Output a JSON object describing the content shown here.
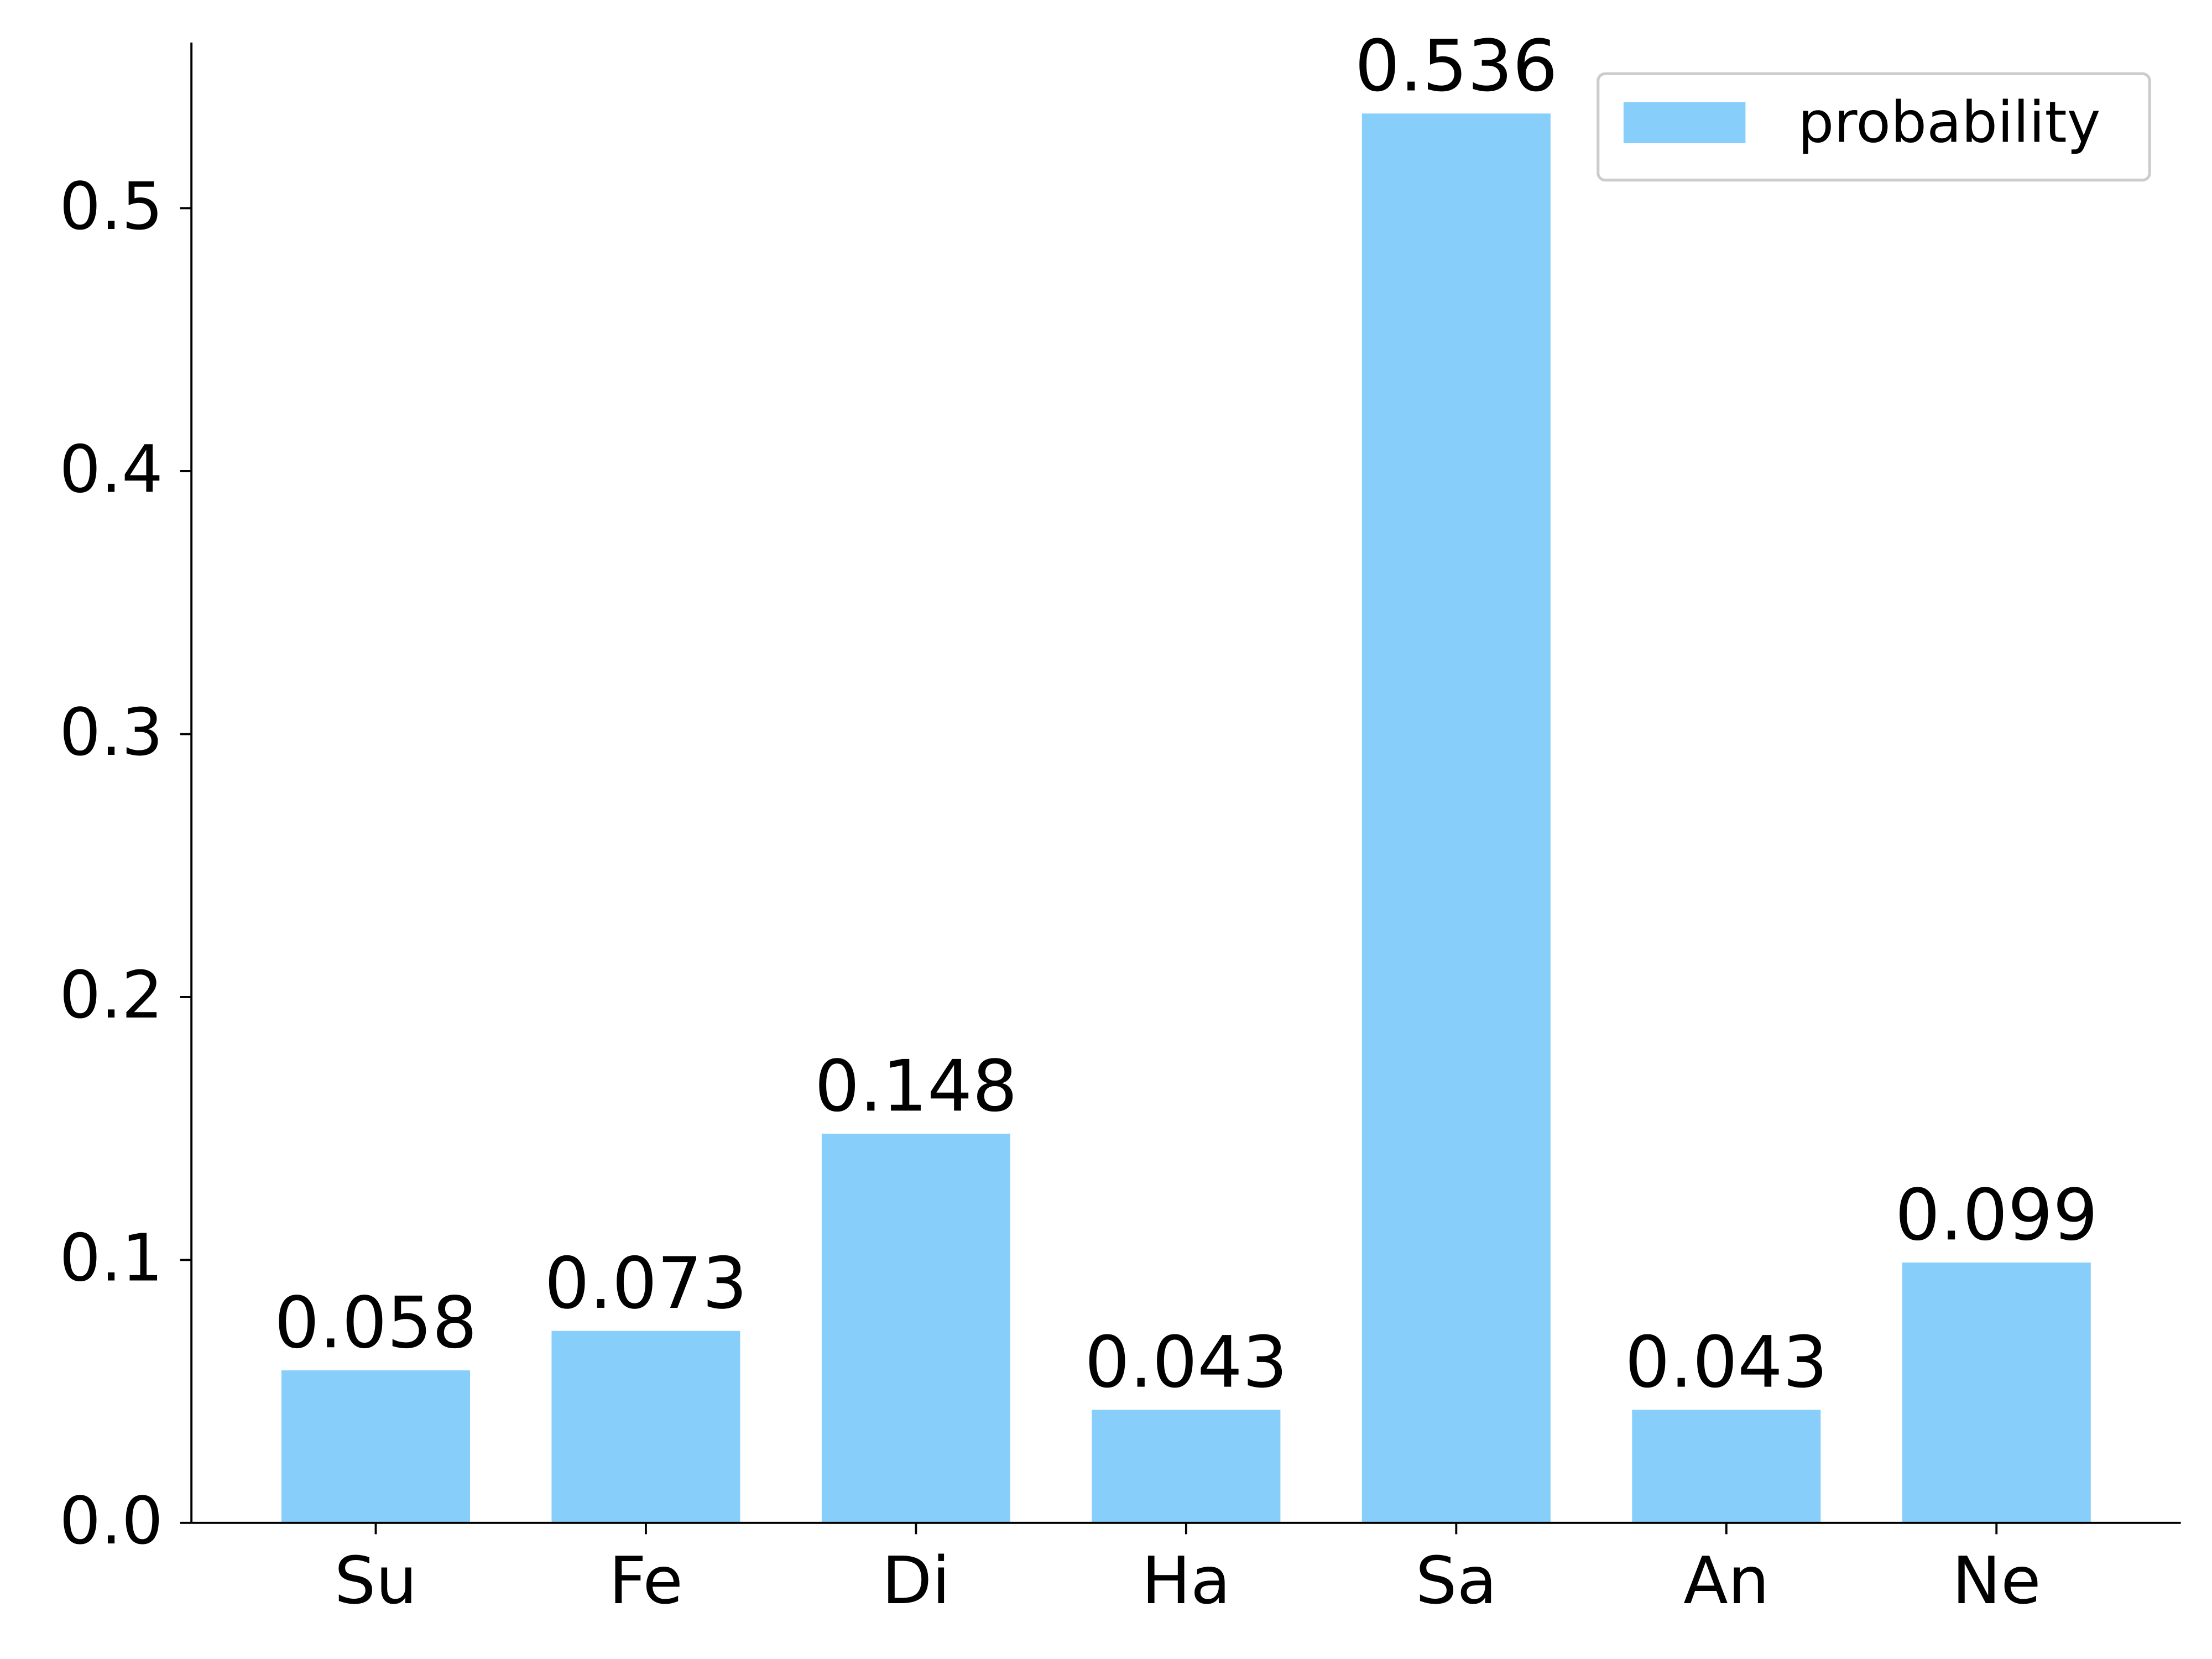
{
  "chart_data": {
    "type": "bar",
    "categories": [
      "Su",
      "Fe",
      "Di",
      "Ha",
      "Sa",
      "An",
      "Ne"
    ],
    "series": [
      {
        "name": "probability",
        "color": "#87cefa",
        "values": [
          0.058,
          0.073,
          0.148,
          0.043,
          0.536,
          0.043,
          0.099
        ]
      }
    ],
    "ylim": [
      0,
      0.563
    ],
    "yticks": [
      {
        "value": 0,
        "label": "0.0"
      },
      0.1,
      0.2,
      0.3,
      0.4,
      0.5
    ],
    "legend": "upper right",
    "grid": false
  }
}
